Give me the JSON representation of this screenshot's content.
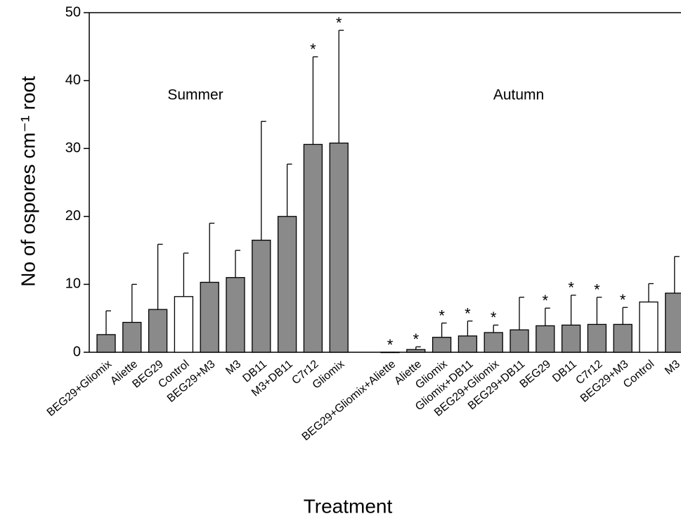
{
  "chart_data": {
    "type": "bar",
    "ylabel": "No of ospores cm⁻¹ root",
    "xlabel": "Treatment",
    "ylim": [
      0,
      50
    ],
    "yticks": [
      0,
      10,
      20,
      30,
      40,
      50
    ],
    "groups": [
      {
        "label": "Summer",
        "categories": [
          "BEG29+Gliomix",
          "Aliette",
          "BEG29",
          "Control",
          "BEG29+M3",
          "M3",
          "DB11",
          "M3+DB11",
          "C7r12",
          "Gliomix"
        ],
        "values": [
          2.6,
          4.4,
          6.3,
          8.2,
          10.3,
          11,
          16.5,
          20,
          30.6,
          30.8
        ],
        "errors": [
          3.5,
          5.6,
          9.6,
          6.4,
          8.7,
          4,
          17.5,
          7.7,
          12.9,
          16.6
        ],
        "colors": [
          "#8a8a8a",
          "#8a8a8a",
          "#8a8a8a",
          "#ffffff",
          "#8a8a8a",
          "#8a8a8a",
          "#8a8a8a",
          "#8a8a8a",
          "#8a8a8a",
          "#8a8a8a"
        ],
        "annotations": [
          null,
          null,
          null,
          null,
          null,
          null,
          null,
          null,
          "*",
          "*"
        ]
      },
      {
        "label": "Autumn",
        "categories": [
          "BEG29+Gliomix+Aliette",
          "Aliette",
          "Gliomix",
          "Gliomix+DB11",
          "BEG29+Gliomix",
          "BEG29+DB11",
          "BEG29",
          "DB11",
          "C7r12",
          "BEG29+M3",
          "Control",
          "M3"
        ],
        "values": [
          0,
          0.4,
          2.2,
          2.4,
          2.9,
          3.3,
          3.9,
          4,
          4.1,
          4.1,
          7.4,
          8.7
        ],
        "errors": [
          0,
          0.4,
          2.1,
          2.2,
          1.1,
          4.8,
          2.6,
          4.4,
          4,
          2.5,
          2.7,
          5.4
        ],
        "colors": [
          "#8a8a8a",
          "#8a8a8a",
          "#8a8a8a",
          "#8a8a8a",
          "#8a8a8a",
          "#8a8a8a",
          "#8a8a8a",
          "#8a8a8a",
          "#8a8a8a",
          "#8a8a8a",
          "#ffffff",
          "#8a8a8a"
        ],
        "annotations": [
          "*",
          "*",
          "*",
          "*",
          "*",
          null,
          "*",
          "*",
          "*",
          "*",
          null,
          null
        ]
      }
    ]
  }
}
